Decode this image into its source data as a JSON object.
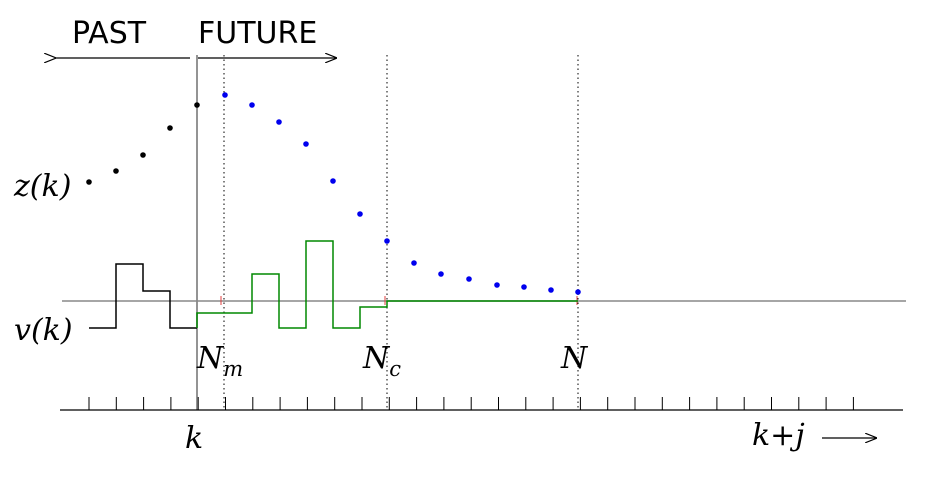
{
  "labels": {
    "past": "PAST",
    "future": "FUTURE",
    "z_of_k": "z(k)",
    "v_of_k": "v(k)",
    "N_m_base": "N",
    "N_m_sub": "m",
    "N_c_base": "N",
    "N_c_sub": "c",
    "N": "N",
    "k": "k",
    "k_plus_j": "k+j"
  },
  "colors": {
    "past": "#000000",
    "future": "#0000ee",
    "control": "#008800",
    "reference": "#888888",
    "tick_marker": "#e04040"
  },
  "diagram_data": {
    "past_points_z": [
      1,
      2,
      3,
      4,
      5
    ],
    "future_points_z": "decaying to the reference line by N",
    "horizon_markers": [
      "N_m",
      "N_c",
      "N"
    ]
  }
}
